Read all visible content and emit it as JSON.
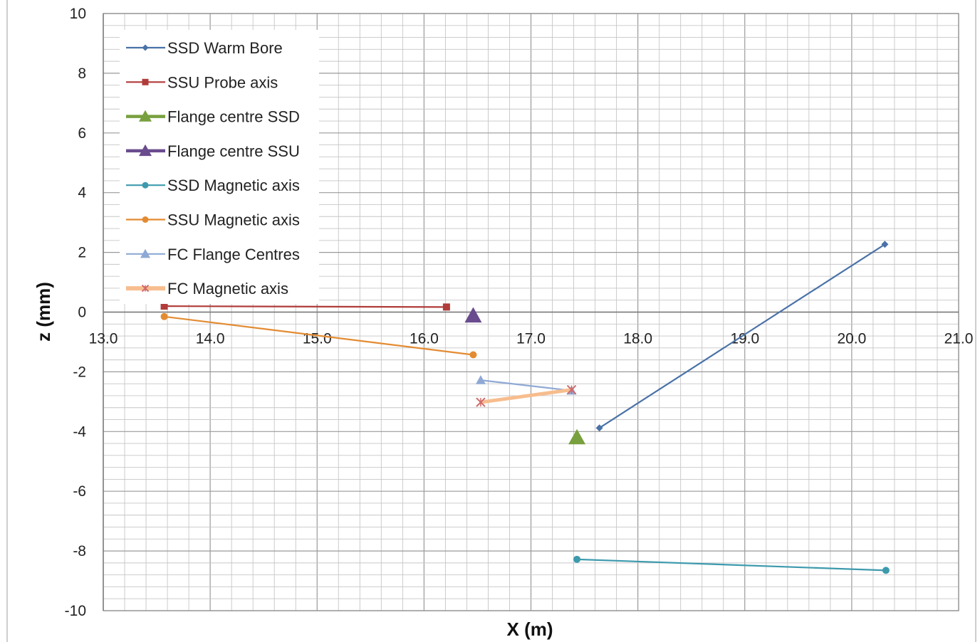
{
  "chart_data": {
    "type": "scatter",
    "xlabel": "X (m)",
    "ylabel": "z (mm)",
    "xlim": [
      13.0,
      21.0
    ],
    "ylim": [
      -10,
      10
    ],
    "x_ticks": [
      "13.0",
      "14.0",
      "15.0",
      "16.0",
      "17.0",
      "18.0",
      "19.0",
      "20.0",
      "21.0"
    ],
    "y_ticks": [
      "10",
      "8",
      "6",
      "4",
      "2",
      "0",
      "-2",
      "-4",
      "-6",
      "-8",
      "-10"
    ],
    "x_tick_values": [
      13,
      14,
      15,
      16,
      17,
      18,
      19,
      20,
      21
    ],
    "y_tick_values": [
      10,
      8,
      6,
      4,
      2,
      0,
      -2,
      -4,
      -6,
      -8,
      -10
    ],
    "grid": true,
    "legend_position": "top-left",
    "series": [
      {
        "name": "SSD Warm Bore",
        "color": "#4a72a8",
        "marker": "diamond",
        "points": [
          [
            17.64,
            -3.88
          ],
          [
            20.31,
            2.27
          ]
        ]
      },
      {
        "name": "SSU Probe axis",
        "color": "#b03c3a",
        "marker": "square",
        "points": [
          [
            13.57,
            0.2
          ],
          [
            16.21,
            0.17
          ]
        ]
      },
      {
        "name": "Flange centre SSD",
        "color": "#78a03e",
        "marker": "triangle-large",
        "points": [
          [
            17.43,
            -4.2
          ]
        ]
      },
      {
        "name": "Flange centre SSU",
        "color": "#6a4b8e",
        "marker": "triangle-large",
        "points": [
          [
            16.46,
            -0.12
          ]
        ]
      },
      {
        "name": "SSD Magnetic axis",
        "color": "#3d9aad",
        "marker": "circle",
        "points": [
          [
            17.43,
            -8.28
          ],
          [
            20.32,
            -8.65
          ]
        ]
      },
      {
        "name": "SSU Magnetic axis",
        "color": "#e38b32",
        "marker": "circle",
        "points": [
          [
            13.57,
            -0.15
          ],
          [
            16.46,
            -1.43
          ]
        ]
      },
      {
        "name": "FC Flange Centres",
        "color": "#8fa9d5",
        "marker": "triangle",
        "points": [
          [
            16.53,
            -2.28
          ],
          [
            17.38,
            -2.63
          ]
        ]
      },
      {
        "name": "FC Magnetic axis",
        "color": "#f7bd8e",
        "marker": "x",
        "points": [
          [
            16.53,
            -3.02
          ],
          [
            17.38,
            -2.6
          ]
        ]
      }
    ]
  }
}
